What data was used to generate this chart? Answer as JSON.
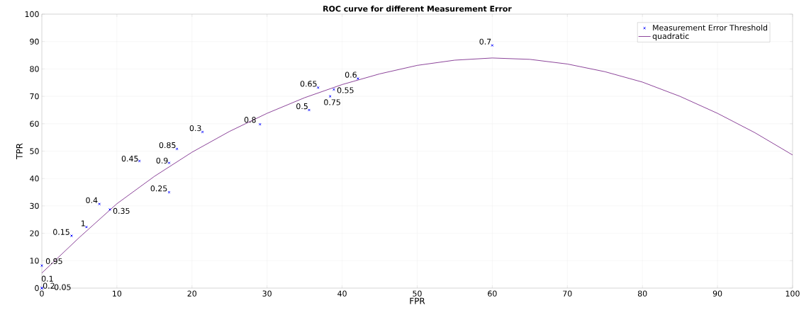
{
  "chart_data": {
    "type": "scatter",
    "title": "ROC curve for different Measurement Error",
    "xlabel": "FPR",
    "ylabel": "TPR",
    "xlim": [
      0,
      100
    ],
    "ylim": [
      0,
      100
    ],
    "xticks": [
      0,
      10,
      20,
      30,
      40,
      50,
      60,
      70,
      80,
      90,
      100
    ],
    "yticks": [
      0,
      10,
      20,
      30,
      40,
      50,
      60,
      70,
      80,
      90,
      100
    ],
    "grid": true,
    "legend": "top right",
    "series": [
      {
        "name": "Measurement Error Threshold",
        "marker": "cross",
        "color": "#0000ff",
        "x": [
          0,
          0,
          0,
          0,
          3.96,
          5.94,
          7.67,
          9.06,
          13.0,
          16.95,
          16.95,
          18.0,
          21.4,
          29.06,
          35.6,
          36.8,
          38.4,
          38.9,
          42.1,
          60.0
        ],
        "values": [
          0,
          0,
          0,
          8.2,
          19.1,
          22.3,
          30.7,
          28.7,
          46.4,
          45.7,
          35.0,
          50.8,
          57.0,
          59.8,
          65.0,
          73.2,
          70.0,
          72.5,
          76.5,
          88.6
        ]
      },
      {
        "name": "quadratic",
        "type": "line",
        "marker": "none",
        "line_style": "solid",
        "color": "#7e2f8e",
        "x": [
          0,
          5,
          10,
          15,
          20,
          25,
          30,
          35,
          40,
          45,
          50,
          55,
          60,
          65,
          70,
          75,
          80,
          85,
          90,
          95,
          100
        ],
        "values": [
          5.5,
          18.5,
          30.8,
          40.8,
          49.6,
          57.2,
          63.8,
          69.5,
          74.3,
          78.2,
          81.3,
          83.2,
          84.0,
          83.5,
          81.8,
          79.0,
          75.2,
          70.0,
          63.8,
          56.7,
          48.6
        ]
      }
    ],
    "annotations": [
      {
        "text": "0.1",
        "x": 0,
        "y": 0
      },
      {
        "text": "0.2",
        "x": 0,
        "y": 0
      },
      {
        "text": "0.05",
        "x": 0,
        "y": 0
      },
      {
        "text": "0.95",
        "x": 0,
        "y": 8.2
      },
      {
        "text": "0.15",
        "x": 3.96,
        "y": 19.1
      },
      {
        "text": "1",
        "x": 5.94,
        "y": 22.3
      },
      {
        "text": "0.4",
        "x": 7.67,
        "y": 30.7
      },
      {
        "text": "0.35",
        "x": 9.06,
        "y": 28.7
      },
      {
        "text": "0.45",
        "x": 13.0,
        "y": 46.4
      },
      {
        "text": "0.9",
        "x": 16.95,
        "y": 45.7
      },
      {
        "text": "0.25",
        "x": 16.95,
        "y": 35.0
      },
      {
        "text": "0.85",
        "x": 18.0,
        "y": 50.8
      },
      {
        "text": "0.3",
        "x": 21.4,
        "y": 57.0
      },
      {
        "text": "0.8",
        "x": 29.06,
        "y": 59.8
      },
      {
        "text": "0.5",
        "x": 35.6,
        "y": 65.0
      },
      {
        "text": "0.65",
        "x": 36.8,
        "y": 73.2
      },
      {
        "text": "0.75",
        "x": 38.4,
        "y": 70.0
      },
      {
        "text": "0.55",
        "x": 38.9,
        "y": 72.5
      },
      {
        "text": "0.6",
        "x": 42.1,
        "y": 76.5
      },
      {
        "text": "0.7",
        "x": 60.0,
        "y": 88.6
      }
    ]
  }
}
